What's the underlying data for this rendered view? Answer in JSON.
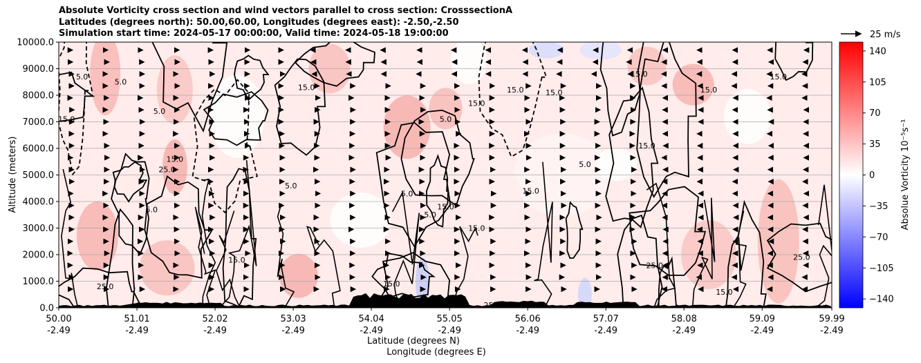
{
  "title_lines": [
    "Absolute Vorticity cross section and wind vectors parallel to cross section: CrosssectionA",
    "Latitudes (degrees north): 50.00,60.00, Longitudes (degrees east): -2.50,-2.50",
    "Simulation start time: 2024-05-17 00:00:00, Valid time: 2024-05-18 19:00:00"
  ],
  "wind_key_label": "25 m/s",
  "chart_data": {
    "type": "heatmap",
    "title": "Absolute Vorticity cross section and wind vectors parallel to cross section: CrosssectionA",
    "ylabel": "Altitude (meters)",
    "xlabel_lines": [
      "Latitude (degrees N)",
      "Longitude (degrees E)"
    ],
    "ylim": [
      0,
      10000
    ],
    "y_ticks": [
      "0.0",
      "1000.0",
      "2000.0",
      "3000.0",
      "4000.0",
      "5000.0",
      "6000.0",
      "7000.0",
      "8000.0",
      "9000.0",
      "10000.0"
    ],
    "x_ticks": [
      {
        "lat": "50.00",
        "lon": "-2.49"
      },
      {
        "lat": "51.01",
        "lon": "-2.49"
      },
      {
        "lat": "52.02",
        "lon": "-2.49"
      },
      {
        "lat": "53.03",
        "lon": "-2.49"
      },
      {
        "lat": "54.04",
        "lon": "-2.49"
      },
      {
        "lat": "55.05",
        "lon": "-2.49"
      },
      {
        "lat": "56.06",
        "lon": "-2.49"
      },
      {
        "lat": "57.07",
        "lon": "-2.49"
      },
      {
        "lat": "58.08",
        "lon": "-2.49"
      },
      {
        "lat": "59.09",
        "lon": "-2.49"
      },
      {
        "lat": "59.99",
        "lon": "-2.49"
      }
    ],
    "colorbar": {
      "label": "Absolue Vorticity 10⁻⁵s⁻¹",
      "ticks": [
        "140",
        "105",
        "70",
        "35",
        "0",
        "−35",
        "−70",
        "−105",
        "−140"
      ],
      "range": [
        -150,
        150
      ],
      "colors": {
        "low": "#0000ff",
        "mid": "#ffffff",
        "high": "#ff0000"
      }
    },
    "grid": true,
    "contour_labels": [
      {
        "text": "5.0",
        "lat": 50.3,
        "alt": 8600
      },
      {
        "text": "15.0",
        "lat": 50.1,
        "alt": 7000
      },
      {
        "text": "5.0",
        "lat": 50.8,
        "alt": 8400
      },
      {
        "text": "5.0",
        "lat": 51.3,
        "alt": 7300
      },
      {
        "text": "15.0",
        "lat": 51.5,
        "alt": 5500
      },
      {
        "text": "25.0",
        "lat": 51.4,
        "alt": 5100
      },
      {
        "text": "5.0",
        "lat": 51.2,
        "alt": 3600
      },
      {
        "text": "15.0",
        "lat": 52.3,
        "alt": 1700
      },
      {
        "text": "25.0",
        "lat": 50.6,
        "alt": 700
      },
      {
        "text": "15.0",
        "lat": 53.2,
        "alt": 8200
      },
      {
        "text": "5.0",
        "lat": 53.0,
        "alt": 4500
      },
      {
        "text": "15.0",
        "lat": 54.3,
        "alt": 800
      },
      {
        "text": "5.0",
        "lat": 55.0,
        "alt": 7000
      },
      {
        "text": "15.0",
        "lat": 55.4,
        "alt": 7600
      },
      {
        "text": "15.0",
        "lat": 55.9,
        "alt": 8100
      },
      {
        "text": "5.0",
        "lat": 54.8,
        "alt": 3400
      },
      {
        "text": "15.0",
        "lat": 55.4,
        "alt": 2900
      },
      {
        "text": "5.0",
        "lat": 54.5,
        "alt": 4200
      },
      {
        "text": "15.0",
        "lat": 56.4,
        "alt": 8000
      },
      {
        "text": "15.0",
        "lat": 57.5,
        "alt": 8700
      },
      {
        "text": "5.0",
        "lat": 56.8,
        "alt": 5300
      },
      {
        "text": "15.0",
        "lat": 57.6,
        "alt": 6000
      },
      {
        "text": "15.0",
        "lat": 56.1,
        "alt": 4300
      },
      {
        "text": "15.0",
        "lat": 55.0,
        "alt": 3700
      },
      {
        "text": "25.0",
        "lat": 57.7,
        "alt": 1500
      },
      {
        "text": "15.0",
        "lat": 58.4,
        "alt": 8100
      },
      {
        "text": "15.0",
        "lat": 58.6,
        "alt": 500
      },
      {
        "text": "25.0",
        "lat": 59.6,
        "alt": 1800
      },
      {
        "text": "15.0",
        "lat": 59.3,
        "alt": 8600
      },
      {
        "text": "25.0",
        "lat": 55.6,
        "alt": 0
      }
    ]
  }
}
